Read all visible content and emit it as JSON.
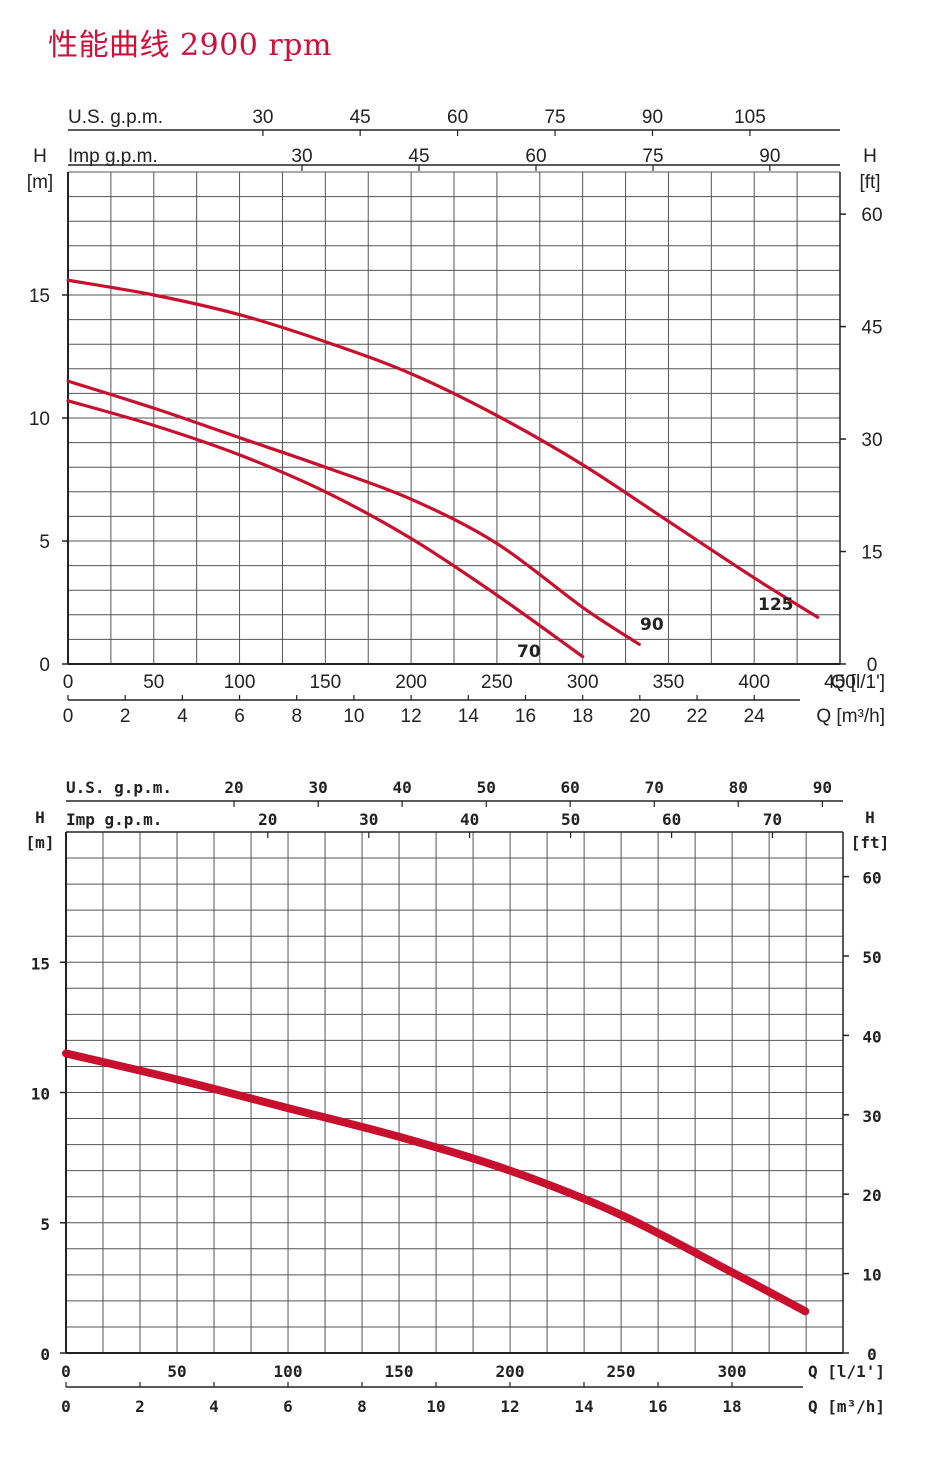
{
  "title": "性能曲线 2900 rpm",
  "colors": {
    "curve": "#c8102e",
    "grid": "#555555",
    "title": "#d0103a"
  },
  "chart_data": [
    {
      "type": "line",
      "top_axis_1_label": "U.S. g.p.m.",
      "top_axis_1_ticks": [
        "30",
        "45",
        "60",
        "75",
        "90",
        "105"
      ],
      "top_axis_1_tick_values_lpm": [
        113.6,
        170.3,
        227.1,
        283.9,
        340.7,
        397.5
      ],
      "top_axis_2_label": "Imp g.p.m.",
      "top_axis_2_ticks": [
        "30",
        "45",
        "60",
        "75",
        "90"
      ],
      "top_axis_2_tick_values_lpm": [
        136.4,
        204.6,
        272.8,
        341.0,
        409.1
      ],
      "left_axis_unit": "H",
      "left_axis_unit2": "[m]",
      "left_ticks": [
        "0",
        "5",
        "10",
        "15"
      ],
      "left_tick_values": [
        0,
        5,
        10,
        15
      ],
      "right_axis_unit": "H",
      "right_axis_unit2": "[ft]",
      "right_ticks": [
        "0",
        "15",
        "30",
        "45",
        "60"
      ],
      "right_tick_values_m": [
        0,
        4.572,
        9.144,
        13.716,
        18.288
      ],
      "x_ticks": [
        "0",
        "50",
        "100",
        "150",
        "200",
        "250",
        "300",
        "350",
        "400",
        "450"
      ],
      "x_tick_values": [
        0,
        50,
        100,
        150,
        200,
        250,
        300,
        350,
        400,
        450
      ],
      "x_label": "Q [l/1']",
      "x2_ticks": [
        "0",
        "2",
        "4",
        "6",
        "8",
        "10",
        "12",
        "14",
        "16",
        "18",
        "20",
        "22",
        "24"
      ],
      "x2_tick_values_lpm": [
        0,
        33.33,
        66.67,
        100,
        133.33,
        166.67,
        200,
        233.33,
        266.67,
        300,
        333.33,
        366.67,
        400
      ],
      "x2_label": "Q [m³/h]",
      "xlim": [
        0,
        450
      ],
      "ylim": [
        0,
        20
      ],
      "series": [
        {
          "name": "70",
          "x": [
            0,
            50,
            100,
            150,
            200,
            250,
            300
          ],
          "y": [
            10.7,
            9.7,
            8.5,
            7.0,
            5.1,
            2.8,
            0.3
          ]
        },
        {
          "name": "90",
          "x": [
            0,
            50,
            100,
            150,
            200,
            250,
            300,
            333
          ],
          "y": [
            11.5,
            10.4,
            9.2,
            8.0,
            6.7,
            4.9,
            2.3,
            0.8
          ]
        },
        {
          "name": "125",
          "x": [
            0,
            50,
            100,
            150,
            200,
            250,
            300,
            350,
            400,
            437
          ],
          "y": [
            15.6,
            15.0,
            14.2,
            13.1,
            11.8,
            10.1,
            8.1,
            5.8,
            3.5,
            1.9
          ]
        }
      ]
    },
    {
      "type": "line",
      "top_axis_1_label": "U.S. g.p.m.",
      "top_axis_1_ticks": [
        "20",
        "30",
        "40",
        "50",
        "60",
        "70",
        "80",
        "90"
      ],
      "top_axis_1_tick_values_lpm": [
        75.7,
        113.6,
        151.4,
        189.3,
        227.1,
        265.0,
        302.8,
        340.7
      ],
      "top_axis_2_label": "Imp g.p.m.",
      "top_axis_2_ticks": [
        "20",
        "30",
        "40",
        "50",
        "60",
        "70"
      ],
      "top_axis_2_tick_values_lpm": [
        90.9,
        136.4,
        181.8,
        227.3,
        272.8,
        318.2
      ],
      "left_axis_unit": "H",
      "left_axis_unit2": "[m]",
      "left_ticks": [
        "0",
        "5",
        "10",
        "15"
      ],
      "left_tick_values": [
        0,
        5,
        10,
        15
      ],
      "right_axis_unit": "H",
      "right_axis_unit2": "[ft]",
      "right_ticks": [
        "0",
        "10",
        "20",
        "30",
        "40",
        "50",
        "60"
      ],
      "right_tick_values_m": [
        0,
        3.048,
        6.096,
        9.144,
        12.192,
        15.24,
        18.288
      ],
      "x_ticks": [
        "0",
        "50",
        "100",
        "150",
        "200",
        "250",
        "300"
      ],
      "x_tick_values": [
        0,
        50,
        100,
        150,
        200,
        250,
        300
      ],
      "x_label": "Q [l/1']",
      "x2_ticks": [
        "0",
        "2",
        "4",
        "6",
        "8",
        "10",
        "12",
        "14",
        "16",
        "18"
      ],
      "x2_tick_values_lpm": [
        0,
        33.33,
        66.67,
        100,
        133.33,
        166.67,
        200,
        233.33,
        266.67,
        300
      ],
      "x2_label": "Q [m³/h]",
      "xlim": [
        0,
        350
      ],
      "ylim": [
        0,
        20
      ],
      "series": [
        {
          "x": [
            0,
            50,
            100,
            150,
            200,
            250,
            300,
            333
          ],
          "y": [
            11.5,
            10.5,
            9.4,
            8.3,
            7.0,
            5.3,
            3.1,
            1.6
          ]
        }
      ]
    }
  ]
}
